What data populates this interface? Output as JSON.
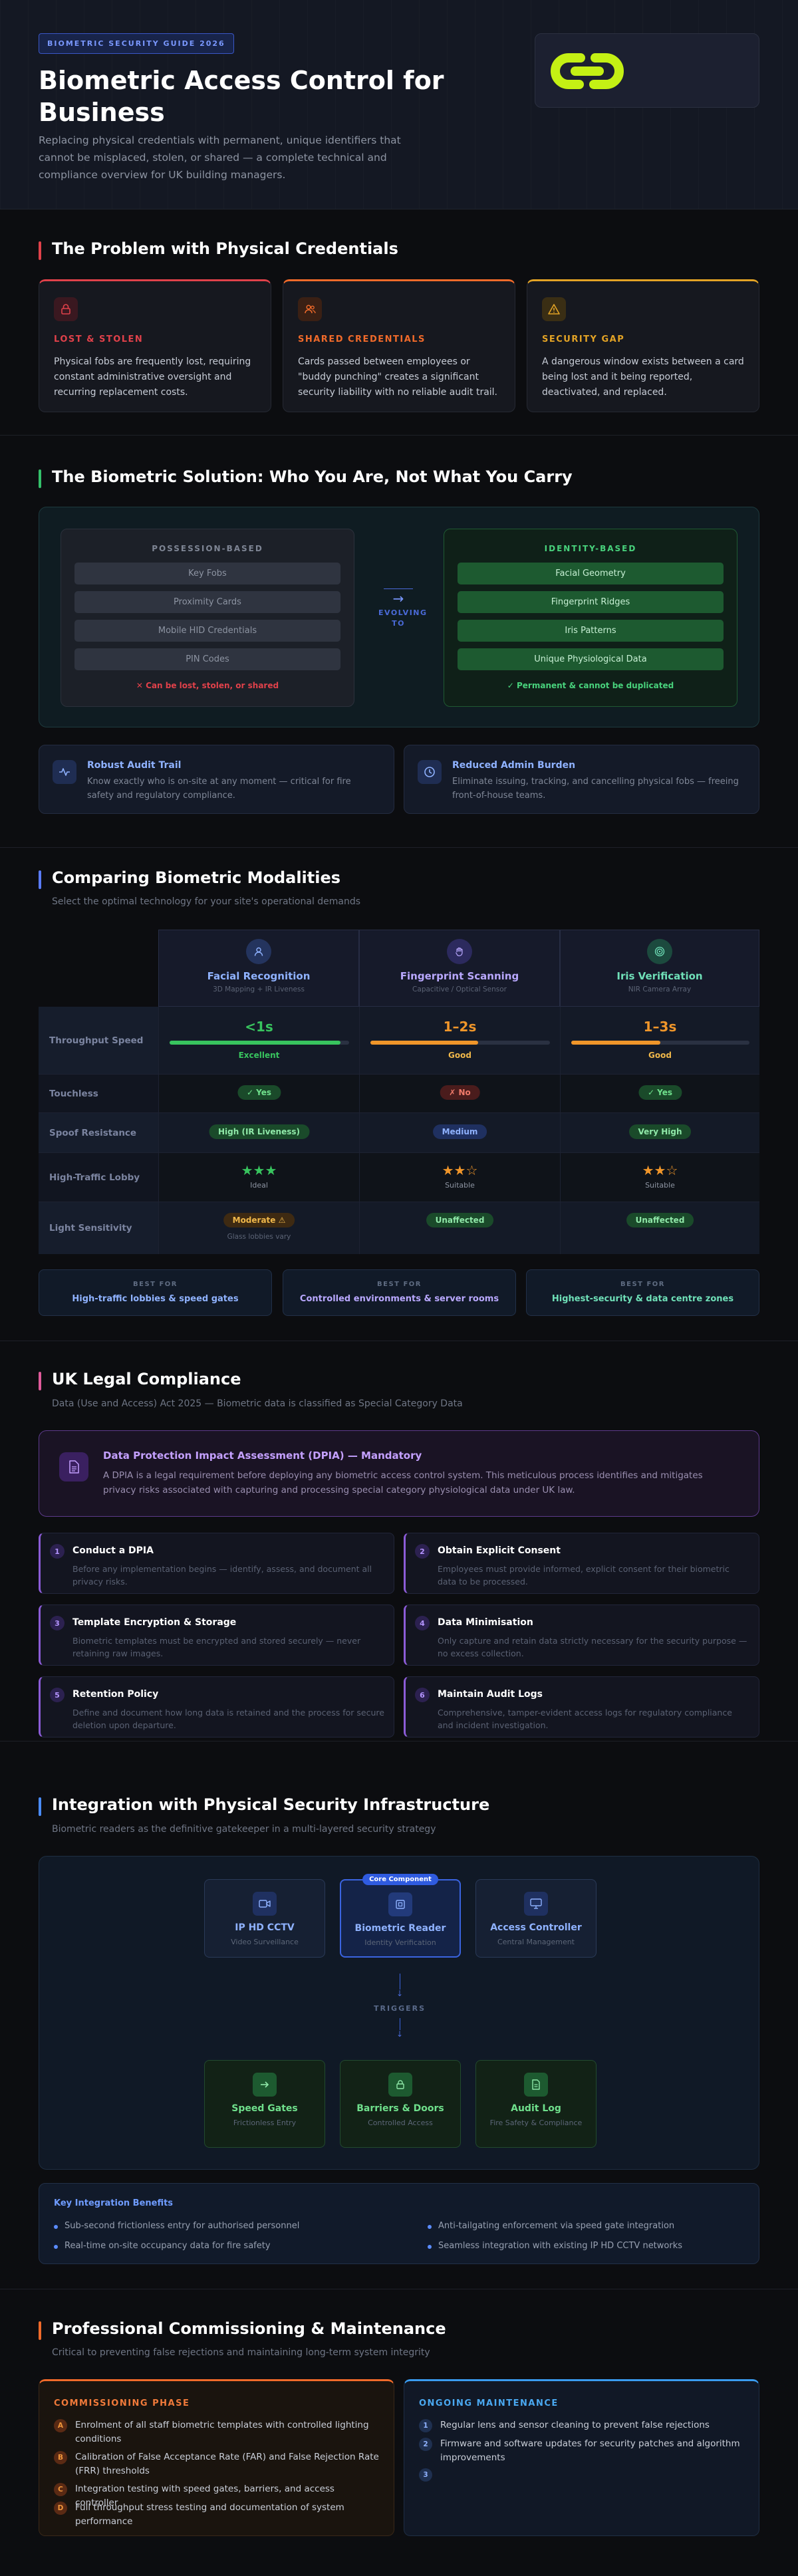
{
  "hero": {
    "badge": "BIOMETRIC SECURITY GUIDE 2026",
    "title": "Biometric Access Control for Business",
    "subtitle": "Replacing physical credentials with permanent, unique identifiers that cannot be misplaced, stolen, or shared — a complete technical and compliance overview for UK building managers."
  },
  "problem": {
    "title": "The Problem with Physical Credentials",
    "cards": [
      {
        "label": "LOST & STOLEN",
        "text": "Physical fobs are frequently lost, requiring constant administrative oversight and recurring replacement costs.",
        "color": "#e0414a",
        "icon": "lock-icon"
      },
      {
        "label": "SHARED CREDENTIALS",
        "text": "Cards passed between employees or \"buddy punching\" creates a significant security liability with no reliable audit trail.",
        "color": "#f06a2a",
        "icon": "users-icon"
      },
      {
        "label": "SECURITY GAP",
        "text": "A dangerous window exists between a card being lost and it being reported, deactivated, and replaced.",
        "color": "#e3a325",
        "icon": "warning-icon"
      }
    ]
  },
  "solution": {
    "title": "The Biometric Solution: Who You Are, Not What You Carry",
    "possession": {
      "heading": "POSSESSION-BASED",
      "items": [
        "Key Fobs",
        "Proximity Cards",
        "Mobile HID Credentials",
        "PIN Codes"
      ],
      "note": "✕ Can be lost, stolen, or shared"
    },
    "arrow_label": "EVOLVING TO",
    "identity": {
      "heading": "IDENTITY-BASED",
      "items": [
        "Facial Geometry",
        "Fingerprint Ridges",
        "Iris Patterns",
        "Unique Physiological Data"
      ],
      "note": "✓ Permanent & cannot be duplicated"
    },
    "features": [
      {
        "title": "Robust Audit Trail",
        "text": "Know exactly who is on-site at any moment — critical for fire safety and regulatory compliance."
      },
      {
        "title": "Reduced Admin Burden",
        "text": "Eliminate issuing, tracking, and cancelling physical fobs — freeing front-of-house teams."
      }
    ]
  },
  "compare": {
    "title": "Comparing Biometric Modalities",
    "subtitle": "Select the optimal technology for your site's operational demands",
    "columns": [
      {
        "name": "Facial Recognition",
        "sub": "3D Mapping + IR Liveness",
        "color": "#8fb2ff"
      },
      {
        "name": "Fingerprint Scanning",
        "sub": "Capacitive / Optical Sensor",
        "color": "#b9a8ff"
      },
      {
        "name": "Iris Verification",
        "sub": "NIR Camera Array",
        "color": "#6fe0b8"
      }
    ],
    "rows": {
      "throughput": {
        "label": "Throughput Speed",
        "values": [
          "<1s",
          "1–2s",
          "1–3s"
        ],
        "ratings": [
          "Excellent",
          "Good",
          "Good"
        ],
        "fill": [
          0.95,
          0.6,
          0.5
        ]
      },
      "touchless": {
        "label": "Touchless",
        "values": [
          "✓ Yes",
          "✗ No",
          "✓ Yes"
        ]
      },
      "spoof": {
        "label": "Spoof Resistance",
        "values": [
          "High (IR Liveness)",
          "Medium",
          "Very High"
        ]
      },
      "traffic": {
        "label": "High-Traffic Lobby",
        "stars": [
          "★★★",
          "★★☆",
          "★★☆"
        ],
        "notes": [
          "Ideal",
          "Suitable",
          "Suitable"
        ],
        "rating_out_of_3": [
          3,
          2,
          2
        ]
      },
      "light": {
        "label": "Light Sensitivity",
        "values": [
          "Moderate ⚠",
          "Unaffected",
          "Unaffected"
        ],
        "note": "Glass lobbies vary"
      }
    },
    "best_for": {
      "label": "BEST FOR",
      "values": [
        "High-traffic lobbies & speed gates",
        "Controlled environments & server rooms",
        "Highest-security & data centre zones"
      ]
    }
  },
  "legal": {
    "title": "UK Legal Compliance",
    "subtitle": "Data (Use and Access) Act 2025 — Biometric data is classified as Special Category Data",
    "dpia": {
      "title": "Data Protection Impact Assessment (DPIA) — Mandatory",
      "text": "A DPIA is a legal requirement before deploying any biometric access control system. This meticulous process identifies and mitigates privacy risks associated with capturing and processing special category physiological data under UK law."
    },
    "steps": [
      {
        "num": "1",
        "title": "Conduct a DPIA",
        "text": "Before any implementation begins — identify, assess, and document all privacy risks."
      },
      {
        "num": "2",
        "title": "Obtain Explicit Consent",
        "text": "Employees must provide informed, explicit consent for their biometric data to be processed."
      },
      {
        "num": "3",
        "title": "Template Encryption & Storage",
        "text": "Biometric templates must be encrypted and stored securely — never retaining raw images."
      },
      {
        "num": "4",
        "title": "Data Minimisation",
        "text": "Only capture and retain data strictly necessary for the security purpose — no excess collection."
      },
      {
        "num": "5",
        "title": "Retention Policy",
        "text": "Define and document how long data is retained and the process for secure deletion upon departure."
      },
      {
        "num": "6",
        "title": "Maintain Audit Logs",
        "text": "Comprehensive, tamper-evident access logs for regulatory compliance and incident investigation."
      }
    ]
  },
  "integration": {
    "title": "Integration with Physical Security Infrastructure",
    "subtitle": "Biometric readers as the definitive gatekeeper in a multi-layered security strategy",
    "top_nodes": [
      {
        "title": "IP HD CCTV",
        "sub": "Video Surveillance"
      },
      {
        "title": "Biometric Reader",
        "sub": "Identity Verification",
        "tag": "Core Component"
      },
      {
        "title": "Access Controller",
        "sub": "Central Management"
      }
    ],
    "triggers_label": "TRIGGERS",
    "bottom_nodes": [
      {
        "title": "Speed Gates",
        "sub": "Frictionless Entry"
      },
      {
        "title": "Barriers & Doors",
        "sub": "Controlled Access"
      },
      {
        "title": "Audit Log",
        "sub": "Fire Safety & Compliance"
      }
    ],
    "benefits": {
      "title": "Key Integration Benefits",
      "items": [
        "Sub-second frictionless entry for authorised personnel",
        "Anti-tailgating enforcement via speed gate integration",
        "Real-time on-site occupancy data for fire safety",
        "Seamless integration with existing IP HD CCTV networks"
      ]
    }
  },
  "commissioning": {
    "title": "Professional Commissioning & Maintenance",
    "subtitle": "Critical to preventing false rejections and maintaining long-term system integrity",
    "phase": {
      "title": "COMMISSIONING PHASE",
      "items": [
        {
          "num": "A",
          "text": "Enrolment of all staff biometric templates with controlled lighting conditions"
        },
        {
          "num": "B",
          "text": "Calibration of False Acceptance Rate (FAR) and False Rejection Rate (FRR) thresholds"
        },
        {
          "num": "C",
          "text": "Integration testing with speed gates, barriers, and access controller"
        },
        {
          "num": "D",
          "text": "Full throughput stress testing and documentation of system performance"
        }
      ]
    },
    "maintenance": {
      "title": "ONGOING MAINTENANCE",
      "items": [
        {
          "num": "1",
          "text": "Regular lens and sensor cleaning to prevent false rejections"
        },
        {
          "num": "2",
          "text": "Firmware and software updates for security patches and algorithm improvements"
        },
        {
          "num": "3",
          "text": ""
        }
      ]
    }
  }
}
